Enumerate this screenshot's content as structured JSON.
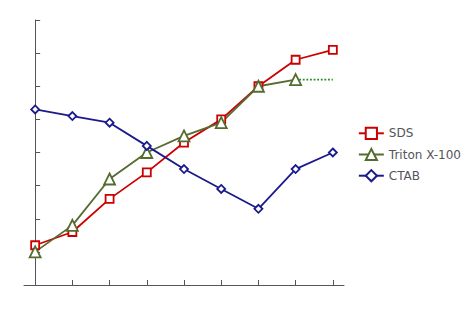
{
  "chart_data": {
    "type": "line",
    "x": [
      0,
      1,
      2,
      3,
      4,
      5,
      6,
      7,
      8
    ],
    "series": [
      {
        "name": "SDS",
        "color": "#cc0000",
        "marker": "square",
        "values": [
          52,
          56,
          66,
          74,
          83,
          90,
          100,
          108,
          111
        ]
      },
      {
        "name": "Triton X-100",
        "color": "#556b2f",
        "marker": "triangle",
        "values": [
          50,
          58,
          72,
          80,
          85,
          89,
          100,
          102,
          null
        ]
      },
      {
        "color": "#228b22",
        "line_style": "dotted",
        "values": [
          null,
          null,
          null,
          null,
          null,
          null,
          null,
          102,
          102
        ]
      },
      {
        "name": "CTAB",
        "color": "#1a1a8c",
        "marker": "diamond",
        "values": [
          93,
          91,
          89,
          82,
          75,
          69,
          63,
          75,
          80
        ]
      }
    ],
    "xlim": [
      -0.3,
      8.3
    ],
    "ylim": [
      40,
      120
    ],
    "xticks": [
      0,
      1,
      2,
      3,
      4,
      5,
      6,
      7,
      8
    ],
    "yticks": [
      40,
      50,
      60,
      70,
      80,
      90,
      100,
      110,
      120
    ],
    "tick_labels": false,
    "grid": false,
    "legend": "right"
  }
}
